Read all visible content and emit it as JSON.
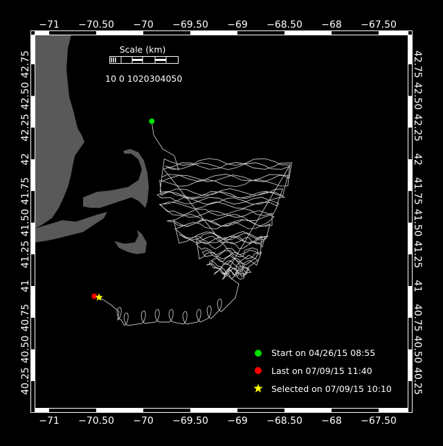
{
  "map": {
    "lon_ticks": [
      -71,
      -70.5,
      -70,
      -69.5,
      -69,
      -68.5,
      -68,
      -67.5
    ],
    "lon_labels": [
      "−71",
      "−70.50",
      "−70",
      "−69.50",
      "−69",
      "−68.50",
      "−68",
      "−67.50"
    ],
    "lat_ticks": [
      40.25,
      40.5,
      40.75,
      41,
      41.25,
      41.5,
      41.75,
      42,
      42.25,
      42.5,
      42.75
    ],
    "lat_labels": [
      "40.25",
      "40.50",
      "40.75",
      "41",
      "41.25",
      "41.50",
      "41.75",
      "42",
      "42.25",
      "42.50",
      "42.75"
    ],
    "background_color": "#000000",
    "land_color": "#595959",
    "track_color": "#c8c8c8"
  },
  "scale": {
    "title": "Scale (km)",
    "labels": "10 0 1020304050"
  },
  "markers": {
    "start": {
      "lon": -69.91,
      "lat": 42.3,
      "color": "#00e000",
      "icon": "circle"
    },
    "last": {
      "lon": -70.52,
      "lat": 40.92,
      "color": "#ff0000",
      "icon": "circle"
    },
    "selected": {
      "lon": -70.47,
      "lat": 40.91,
      "color": "#ffff00",
      "icon": "star"
    }
  },
  "legend": {
    "start": "Start on 04/26/15 08:55",
    "last": "Last on 07/09/15 11:40",
    "selected": "Selected on 07/09/15 10:10"
  }
}
